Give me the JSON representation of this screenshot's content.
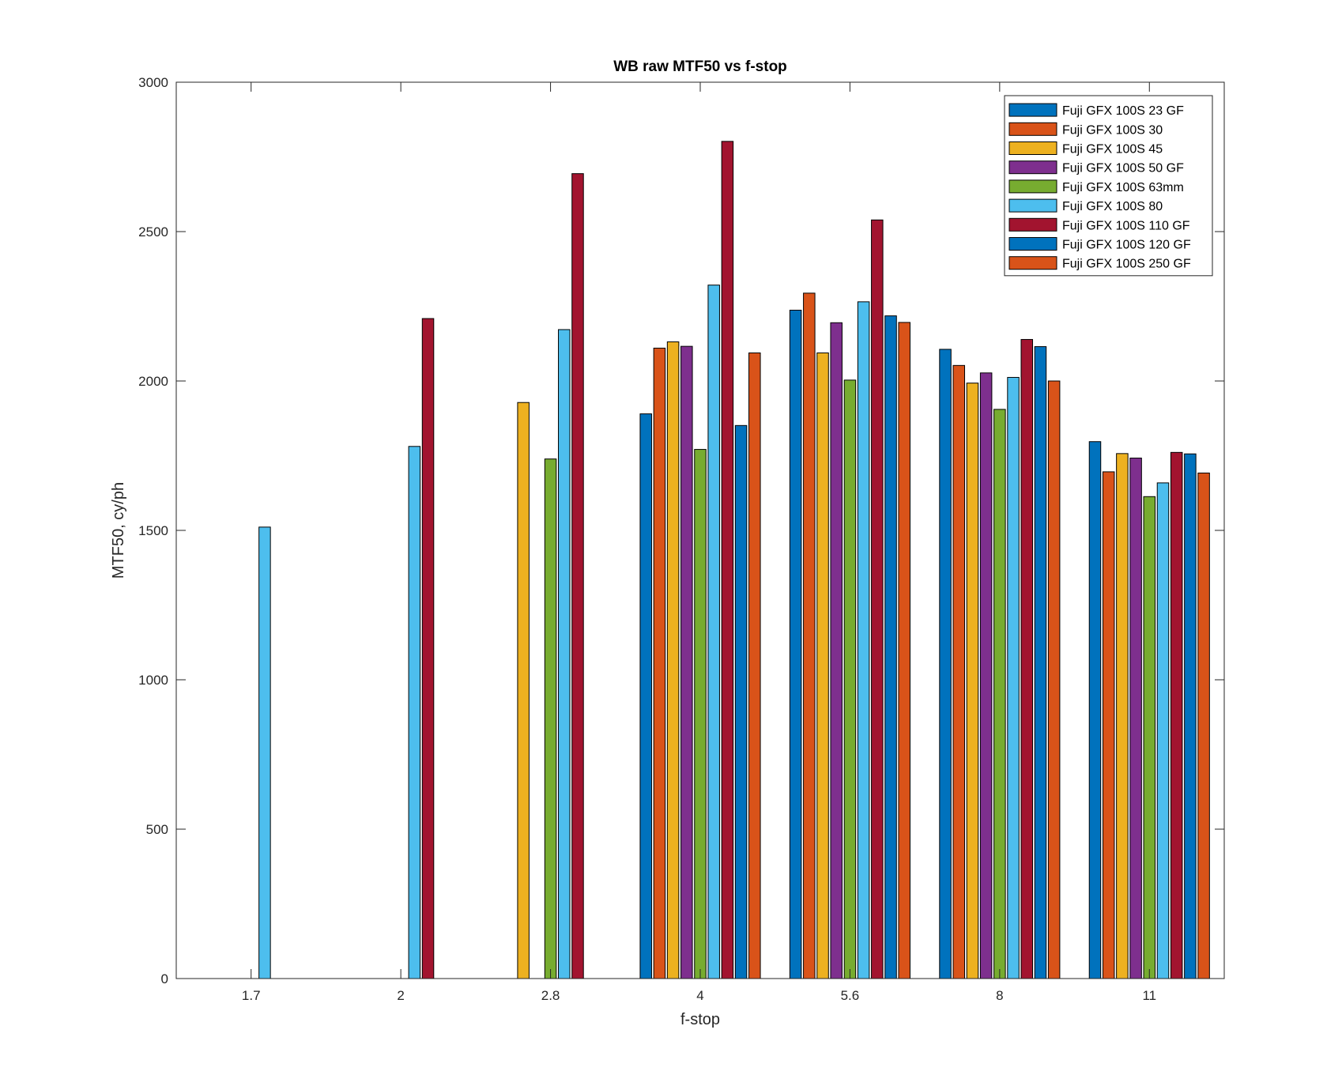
{
  "chart_data": {
    "type": "bar",
    "title": "WB raw MTF50 vs f-stop",
    "xlabel": "f-stop",
    "ylabel": "MTF50, cy/ph",
    "categories": [
      "1.7",
      "2",
      "2.8",
      "4",
      "5.6",
      "8",
      "11"
    ],
    "ylim": [
      0,
      3000
    ],
    "yticks": [
      0,
      500,
      1000,
      1500,
      2000,
      2500,
      3000
    ],
    "grid": false,
    "legend_position": "top-right",
    "series": [
      {
        "name": "Fuji GFX 100S 23  GF",
        "color": "#0072BD",
        "values": [
          null,
          null,
          null,
          1890,
          2237,
          2106,
          1797
        ]
      },
      {
        "name": "Fuji GFX 100S 30",
        "color": "#D95319",
        "values": [
          null,
          null,
          null,
          2110,
          2294,
          2052,
          1696
        ]
      },
      {
        "name": "Fuji GFX 100S 45",
        "color": "#EDB120",
        "values": [
          null,
          null,
          1928,
          2131,
          2094,
          1993,
          1757
        ]
      },
      {
        "name": "Fuji GFX 100S 50 GF",
        "color": "#7E2F8E",
        "values": [
          null,
          null,
          null,
          2116,
          2195,
          2027,
          1742
        ]
      },
      {
        "name": "Fuji GFX 100S 63mm",
        "color": "#77AC30",
        "values": [
          null,
          null,
          1739,
          1771,
          2003,
          1905,
          1613
        ]
      },
      {
        "name": "Fuji GFX 100S 80",
        "color": "#4DBEEE",
        "values": [
          1511,
          1781,
          2172,
          2321,
          2265,
          2012,
          1659
        ]
      },
      {
        "name": "Fuji GFX 100S 110 GF",
        "color": "#A2142F",
        "values": [
          null,
          2209,
          2694,
          2802,
          2539,
          2139,
          1761
        ]
      },
      {
        "name": "Fuji GFX 100S 120 GF",
        "color": "#0072BD",
        "values": [
          null,
          null,
          null,
          1851,
          2218,
          2115,
          1756
        ]
      },
      {
        "name": "Fuji GFX 100S 250 GF",
        "color": "#D95319",
        "values": [
          null,
          null,
          null,
          2094,
          2196,
          2000,
          1692
        ]
      }
    ]
  }
}
